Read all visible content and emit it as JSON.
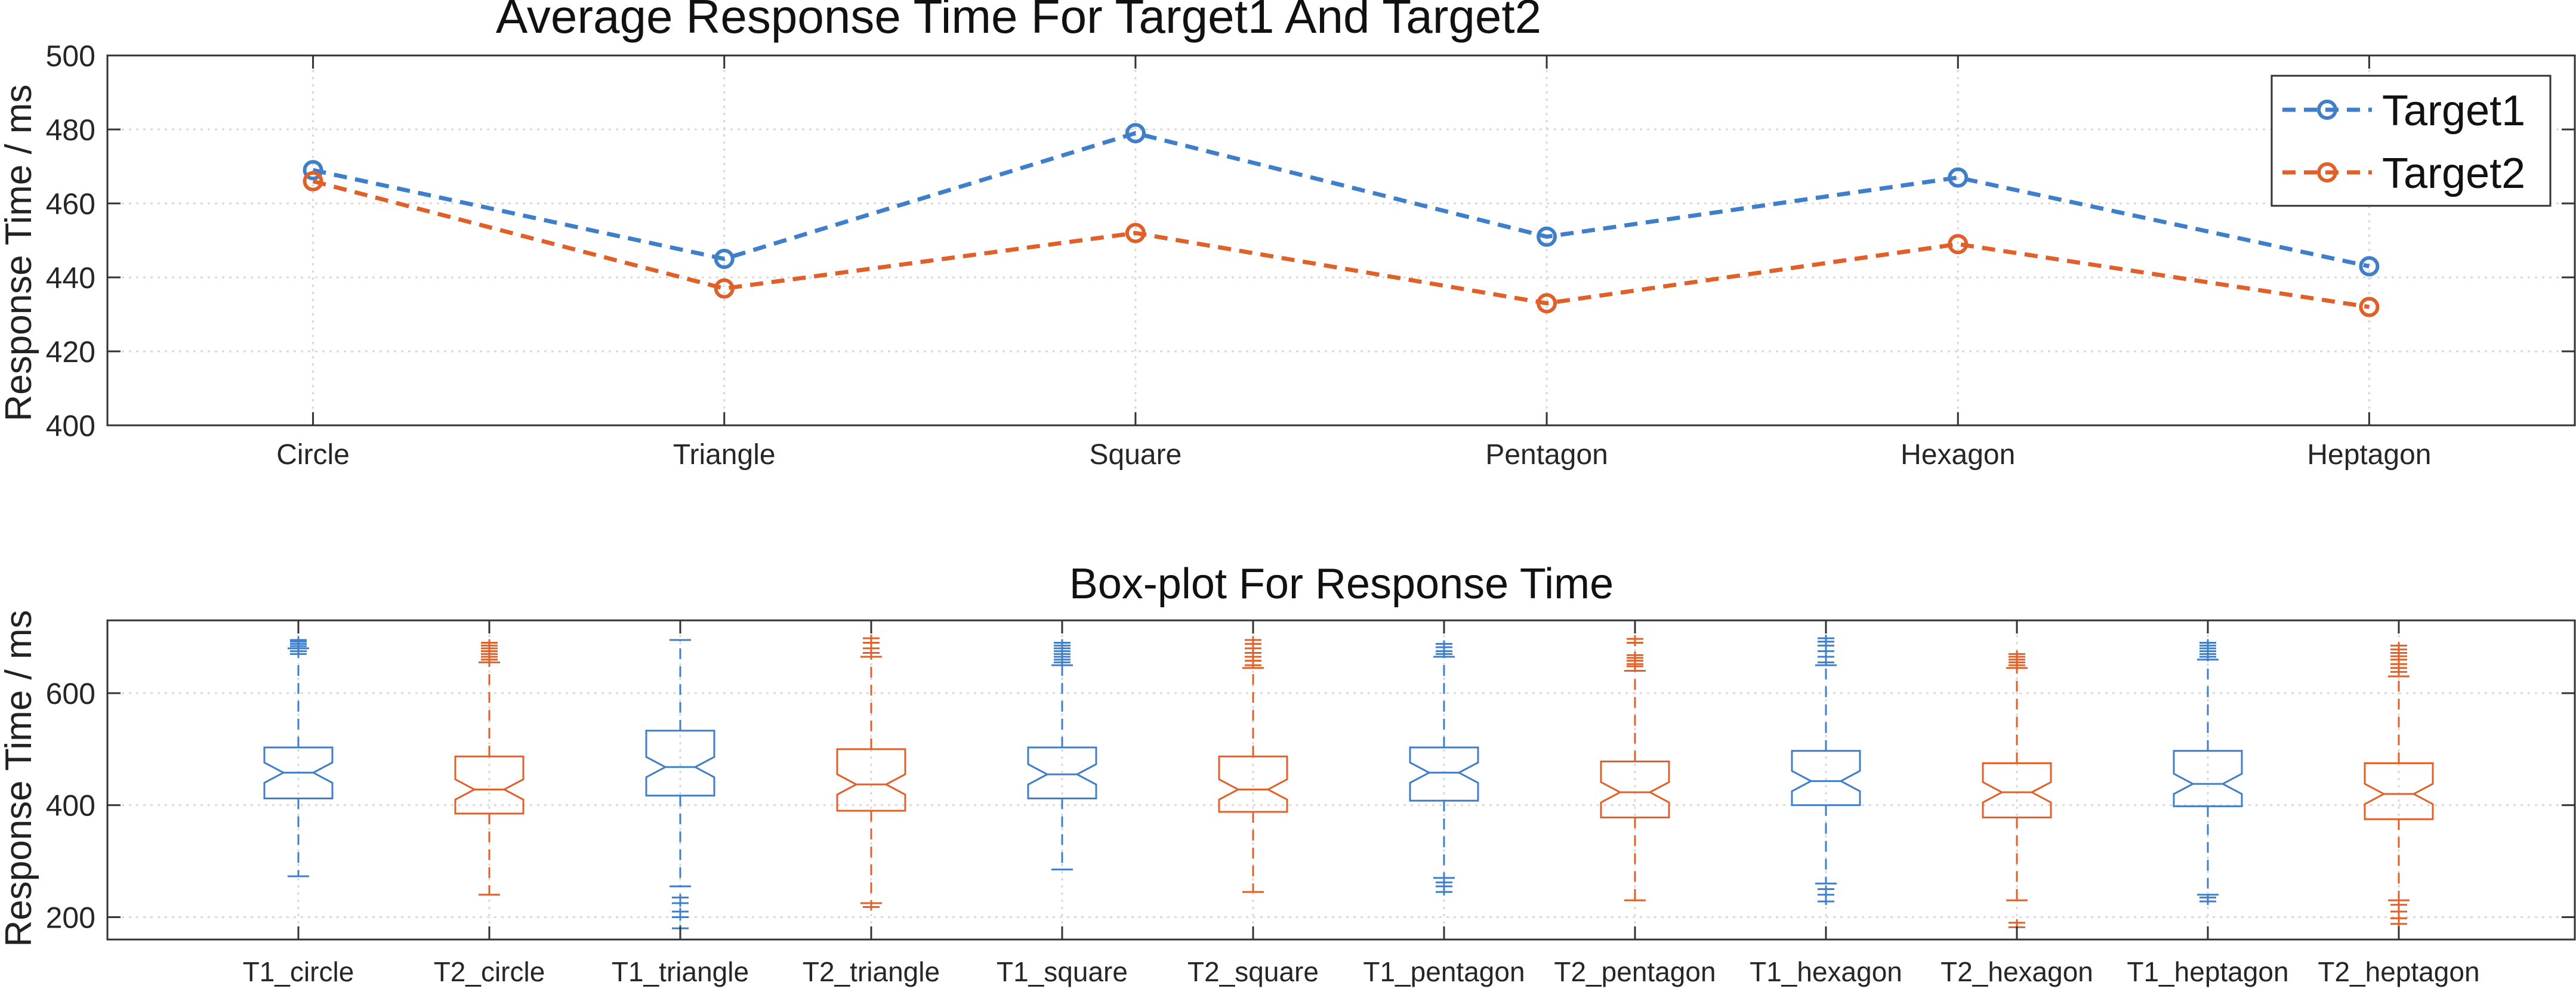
{
  "chart_data": [
    {
      "type": "line",
      "title": "Average Response Time For Target1 And Target2",
      "xlabel": "",
      "ylabel": "Response Time / ms",
      "categories": [
        "Circle",
        "Triangle",
        "Square",
        "Pentagon",
        "Hexagon",
        "Heptagon"
      ],
      "ylim": [
        400,
        500
      ],
      "yticks": [
        400,
        420,
        440,
        460,
        480,
        500
      ],
      "grid": true,
      "legend": "top-right",
      "series": [
        {
          "name": "Target1",
          "color": "#3f7fc9",
          "values": [
            469,
            445,
            479,
            451,
            467,
            443
          ]
        },
        {
          "name": "Target2",
          "color": "#e0602a",
          "values": [
            466,
            437,
            452,
            433,
            449,
            432
          ]
        }
      ]
    },
    {
      "type": "boxplot",
      "title": "Box-plot For Response Time",
      "xlabel": "",
      "ylabel": "Response Time / ms",
      "ylim": [
        160,
        730
      ],
      "yticks": [
        200,
        400,
        600
      ],
      "grid": true,
      "categories": [
        "T1_circle",
        "T2_circle",
        "T1_triangle",
        "T2_triangle",
        "T1_square",
        "T2_square",
        "T1_pentagon",
        "T2_pentagon",
        "T1_hexagon",
        "T2_hexagon",
        "T1_heptagon",
        "T2_heptagon"
      ],
      "series_colors": {
        "T1": "#3f7fc9",
        "T2": "#e0602a"
      },
      "boxes": [
        {
          "label": "T1_circle",
          "group": "T1",
          "min": 273,
          "q1": 412,
          "median": 458,
          "q3": 503,
          "max": 680,
          "outliers_high": [
            670,
            675,
            680,
            684,
            688,
            692,
            695
          ],
          "outliers_low": []
        },
        {
          "label": "T2_circle",
          "group": "T2",
          "min": 240,
          "q1": 385,
          "median": 428,
          "q3": 487,
          "max": 655,
          "outliers_high": [
            660,
            665,
            670,
            675,
            680,
            685,
            690
          ],
          "outliers_low": []
        },
        {
          "label": "T1_triangle",
          "group": "T1",
          "min": 255,
          "q1": 417,
          "median": 468,
          "q3": 533,
          "max": 695,
          "outliers_high": [],
          "outliers_low": [
            235,
            225,
            210,
            200,
            180
          ]
        },
        {
          "label": "T2_triangle",
          "group": "T2",
          "min": 225,
          "q1": 390,
          "median": 437,
          "q3": 500,
          "max": 665,
          "outliers_high": [
            672,
            680,
            690,
            698
          ],
          "outliers_low": [
            218
          ]
        },
        {
          "label": "T1_square",
          "group": "T1",
          "min": 285,
          "q1": 412,
          "median": 455,
          "q3": 503,
          "max": 650,
          "outliers_high": [
            655,
            660,
            665,
            670,
            675,
            680,
            685,
            690
          ],
          "outliers_low": []
        },
        {
          "label": "T2_square",
          "group": "T2",
          "min": 245,
          "q1": 388,
          "median": 428,
          "q3": 487,
          "max": 645,
          "outliers_high": [
            650,
            658,
            665,
            672,
            680,
            688,
            695
          ],
          "outliers_low": []
        },
        {
          "label": "T1_pentagon",
          "group": "T1",
          "min": 270,
          "q1": 408,
          "median": 458,
          "q3": 503,
          "max": 665,
          "outliers_high": [
            670,
            675,
            682,
            688
          ],
          "outliers_low": [
            262,
            255,
            245
          ]
        },
        {
          "label": "T2_pentagon",
          "group": "T2",
          "min": 230,
          "q1": 378,
          "median": 423,
          "q3": 478,
          "max": 640,
          "outliers_high": [
            648,
            652,
            658,
            663,
            668,
            690,
            697
          ],
          "outliers_low": []
        },
        {
          "label": "T1_hexagon",
          "group": "T1",
          "min": 260,
          "q1": 400,
          "median": 443,
          "q3": 497,
          "max": 650,
          "outliers_high": [
            655,
            665,
            675,
            685,
            692,
            698
          ],
          "outliers_low": [
            250,
            240,
            228
          ]
        },
        {
          "label": "T2_hexagon",
          "group": "T2",
          "min": 230,
          "q1": 378,
          "median": 423,
          "q3": 475,
          "max": 645,
          "outliers_high": [
            650,
            655,
            660,
            665,
            670
          ],
          "outliers_low": [
            190,
            182
          ]
        },
        {
          "label": "T1_heptagon",
          "group": "T1",
          "min": 240,
          "q1": 398,
          "median": 438,
          "q3": 497,
          "max": 660,
          "outliers_high": [
            665,
            670,
            675,
            680,
            685,
            690
          ],
          "outliers_low": [
            235,
            228
          ]
        },
        {
          "label": "T2_heptagon",
          "group": "T2",
          "min": 230,
          "q1": 375,
          "median": 420,
          "q3": 475,
          "max": 630,
          "outliers_high": [
            638,
            645,
            652,
            660,
            666,
            672,
            678,
            685
          ],
          "outliers_low": [
            222,
            210,
            198,
            188
          ]
        }
      ]
    }
  ]
}
